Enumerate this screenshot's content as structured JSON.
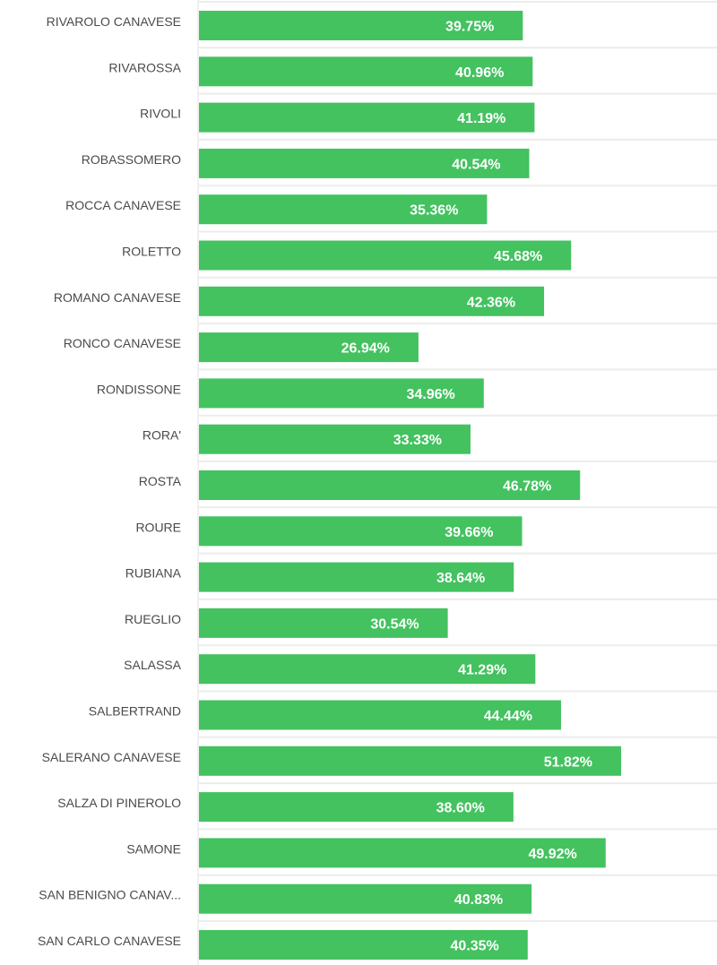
{
  "chart_data": {
    "type": "bar",
    "orientation": "horizontal",
    "title": "",
    "xlabel": "",
    "ylabel": "",
    "grid": true,
    "legend": "none",
    "bar_color": "#43c25f",
    "value_suffix": "%",
    "xlim": [
      0,
      70
    ],
    "categories": [
      "RIVAROLO CANAVESE",
      "RIVAROSSA",
      "RIVOLI",
      "ROBASSOMERO",
      "ROCCA CANAVESE",
      "ROLETTO",
      "ROMANO CANAVESE",
      "RONCO CANAVESE",
      "RONDISSONE",
      "RORA'",
      "ROSTA",
      "ROURE",
      "RUBIANA",
      "RUEGLIO",
      "SALASSA",
      "SALBERTRAND",
      "SALERANO CANAVESE",
      "SALZA DI PINEROLO",
      "SAMONE",
      "SAN BENIGNO CANAV...",
      "SAN CARLO CANAVESE"
    ],
    "values": [
      39.75,
      40.96,
      41.19,
      40.54,
      35.36,
      45.68,
      42.36,
      26.94,
      34.96,
      33.33,
      46.78,
      39.66,
      38.64,
      30.54,
      41.29,
      44.44,
      51.82,
      38.6,
      49.92,
      40.83,
      40.35
    ],
    "value_labels": [
      "39.75%",
      "40.96%",
      "41.19%",
      "40.54%",
      "35.36%",
      "45.68%",
      "42.36%",
      "26.94%",
      "34.96%",
      "33.33%",
      "46.78%",
      "39.66%",
      "38.64%",
      "30.54%",
      "41.29%",
      "44.44%",
      "51.82%",
      "38.60%",
      "49.92%",
      "40.83%",
      "40.35%"
    ]
  }
}
